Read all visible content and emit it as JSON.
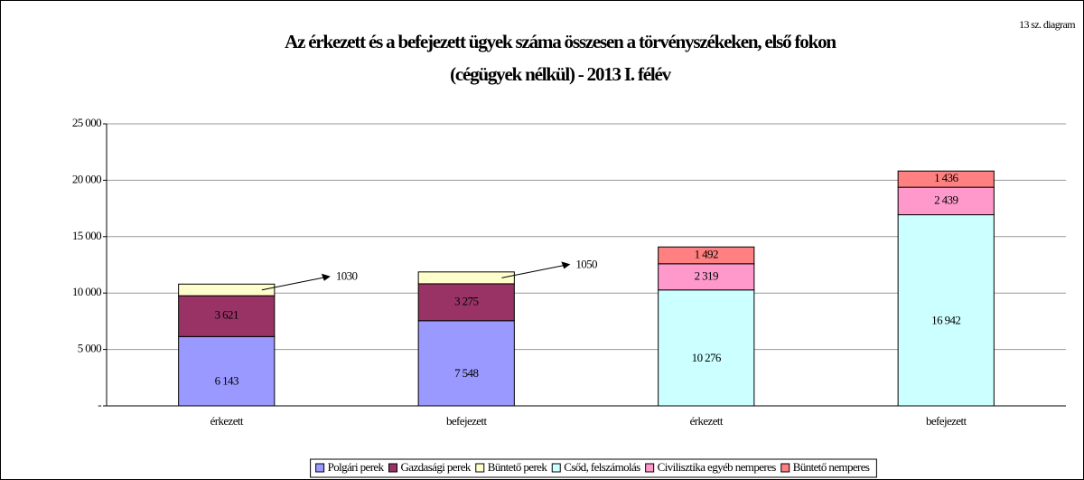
{
  "chart_data": {
    "type": "stacked_bar",
    "title": [
      "Az érkezett és a befejezett ügyek száma összesen a törvényszékeken, első fokon",
      "(cégügyek nélkül) - 2013 I. félév"
    ],
    "annotation": "13 sz. diagram",
    "categories": [
      "érkezett",
      "befejezett",
      "érkezett",
      "befejezett"
    ],
    "series": [
      {
        "name": "Polgári perek",
        "color": "#9999ff",
        "values": [
          6143,
          7548,
          null,
          null
        ],
        "value_labels": [
          "6 143",
          "7 548",
          null,
          null
        ]
      },
      {
        "name": "Gazdasági perek",
        "color": "#993366",
        "values": [
          3621,
          3275,
          null,
          null
        ],
        "value_labels": [
          "3 621",
          "3 275",
          null,
          null
        ]
      },
      {
        "name": "Büntető perek",
        "color": "#ffffcc",
        "values": [
          1030,
          1050,
          null,
          null
        ],
        "label_outside": true
      },
      {
        "name": "Csőd, felszámolás",
        "color": "#ccffff",
        "values": [
          null,
          null,
          10276,
          16942
        ],
        "value_labels": [
          null,
          null,
          "10 276",
          "16 942"
        ]
      },
      {
        "name": "Civilisztika egyéb nemperes",
        "color": "#ff99cc",
        "values": [
          null,
          null,
          2319,
          2439
        ],
        "value_labels": [
          null,
          null,
          "2 319",
          "2 439"
        ]
      },
      {
        "name": "Büntető nemperes",
        "color": "#ff8080",
        "values": [
          null,
          null,
          1492,
          1436
        ],
        "value_labels": [
          null,
          null,
          "1 492",
          "1 436"
        ]
      }
    ],
    "ylim": [
      0,
      25000
    ],
    "yticks": [
      {
        "value": 0,
        "label": "-"
      },
      {
        "value": 5000,
        "label": "5 000"
      },
      {
        "value": 10000,
        "label": "10 000"
      },
      {
        "value": 15000,
        "label": "15 000"
      },
      {
        "value": 20000,
        "label": "20 000"
      },
      {
        "value": 25000,
        "label": "25 000"
      }
    ],
    "grid": true,
    "legend": "bottom"
  }
}
